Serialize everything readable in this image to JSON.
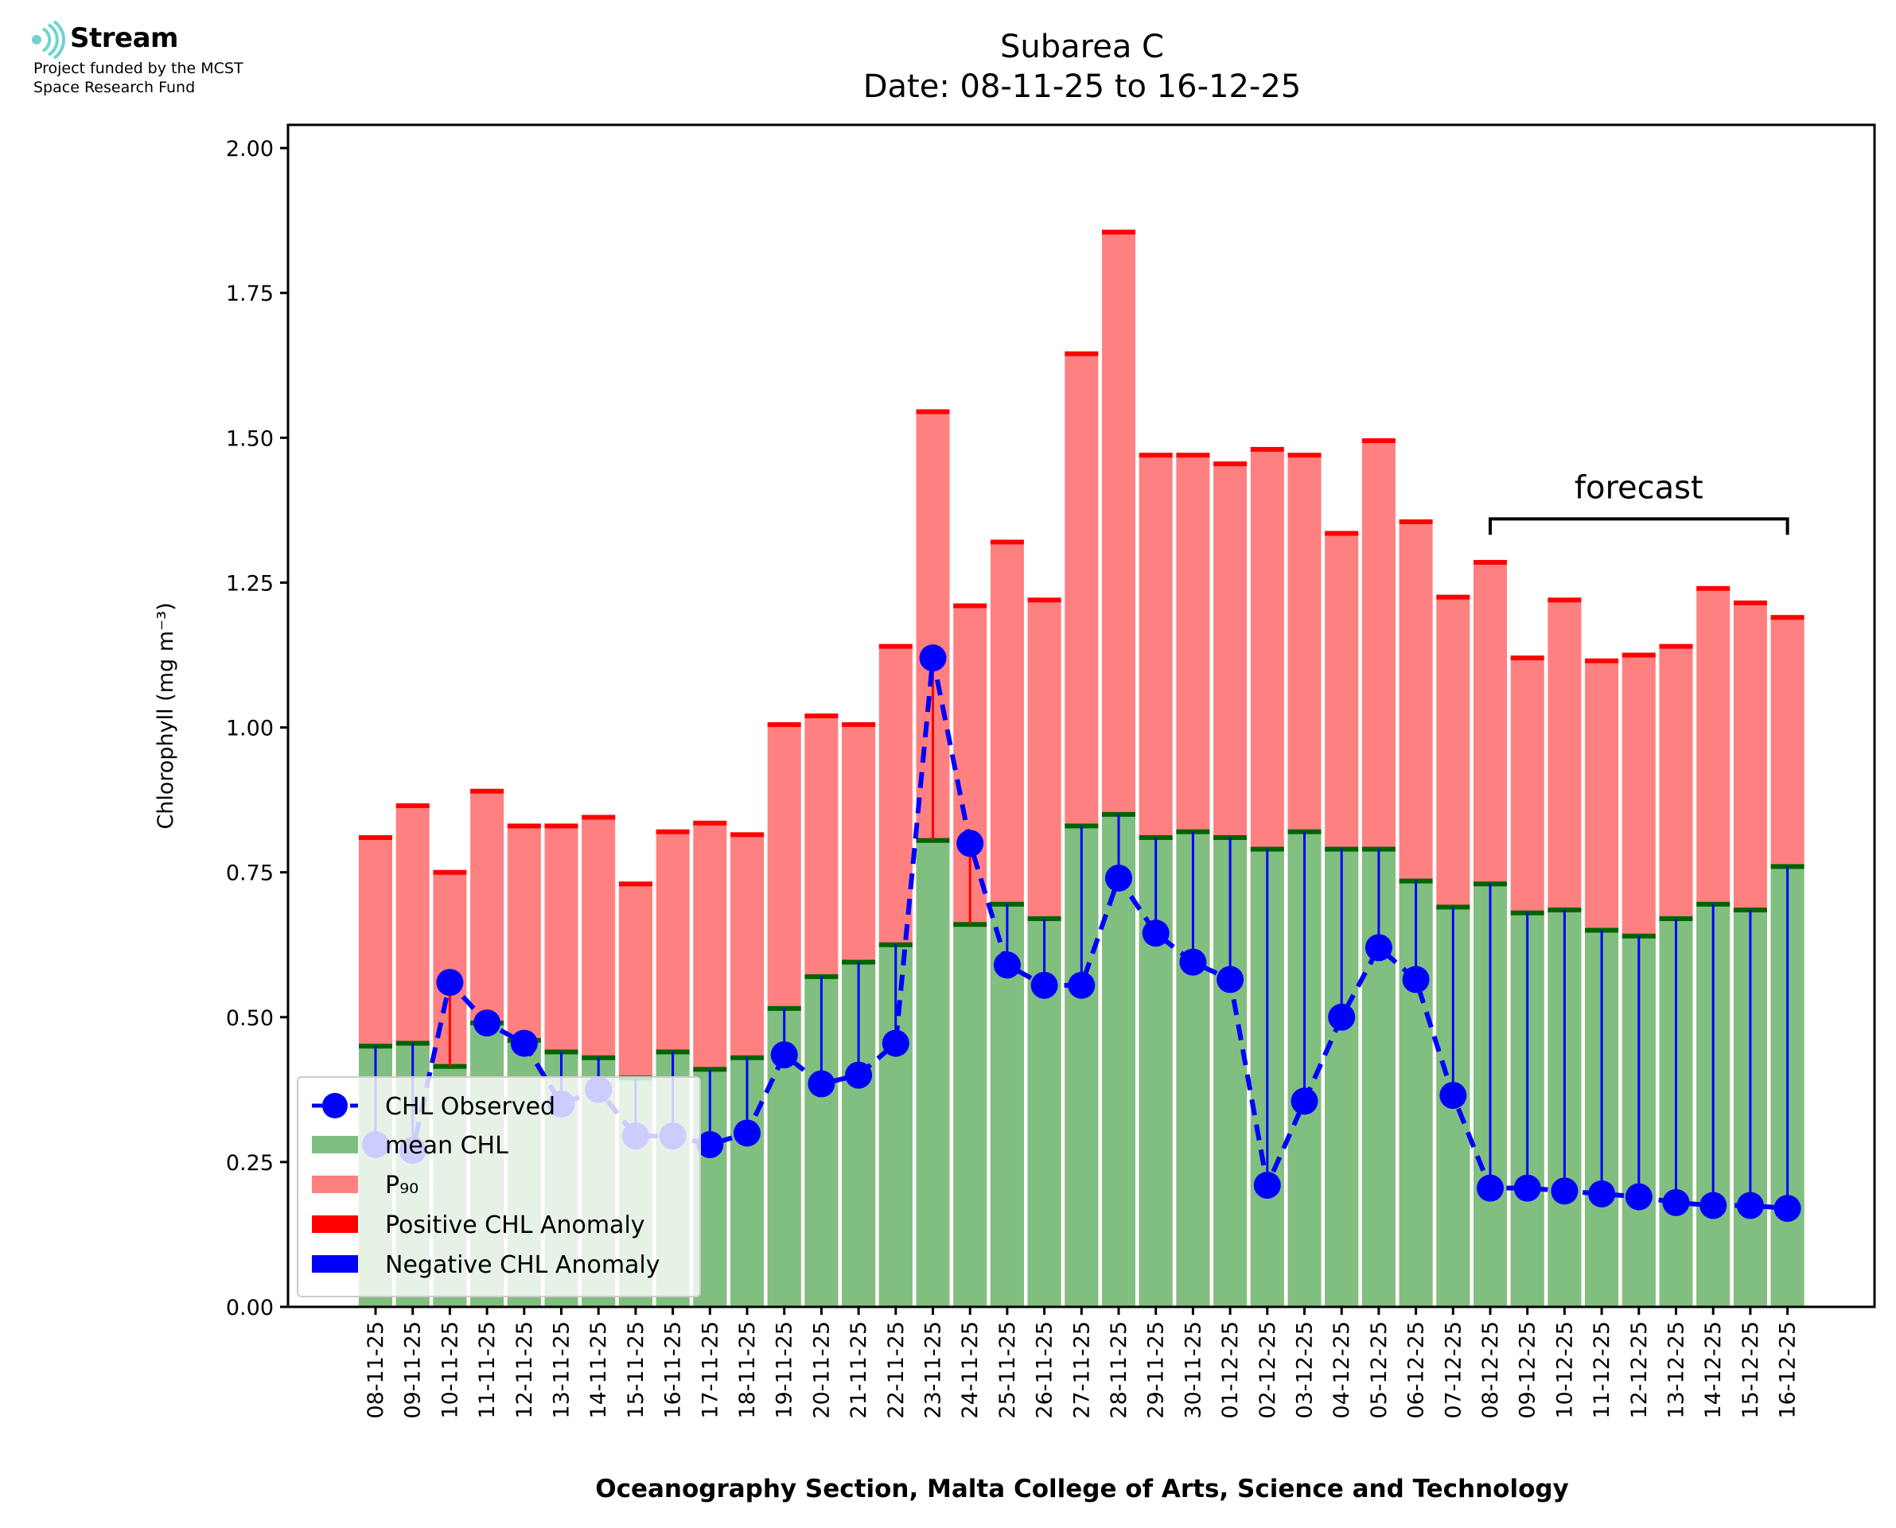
{
  "logo": {
    "name": "Stream",
    "funded_line1": "Project funded by the MCST",
    "funded_line2": "Space Research Fund"
  },
  "chart_data": {
    "type": "bar",
    "title": "Subarea C",
    "subtitle": "Date: 08-11-25 to 16-12-25",
    "xlabel": "Oceanography Section, Malta College of Arts, Science and Technology",
    "ylabel": "Chlorophyll (mg m⁻³)",
    "ylim": [
      0,
      2.04
    ],
    "yticks": [
      "0.00",
      "0.25",
      "0.50",
      "0.75",
      "1.00",
      "1.25",
      "1.50",
      "1.75",
      "2.00"
    ],
    "categories": [
      "08-11-25",
      "09-11-25",
      "10-11-25",
      "11-11-25",
      "12-11-25",
      "13-11-25",
      "14-11-25",
      "15-11-25",
      "16-11-25",
      "17-11-25",
      "18-11-25",
      "19-11-25",
      "20-11-25",
      "21-11-25",
      "22-11-25",
      "23-11-25",
      "24-11-25",
      "25-11-25",
      "26-11-25",
      "27-11-25",
      "28-11-25",
      "29-11-25",
      "30-11-25",
      "01-12-25",
      "02-12-25",
      "03-12-25",
      "04-12-25",
      "05-12-25",
      "06-12-25",
      "07-12-25",
      "08-12-25",
      "09-12-25",
      "10-12-25",
      "11-12-25",
      "12-12-25",
      "13-12-25",
      "14-12-25",
      "15-12-25",
      "16-12-25"
    ],
    "series": [
      {
        "name": "mean CHL",
        "color": "#80bf80",
        "values": [
          0.45,
          0.455,
          0.415,
          0.49,
          0.46,
          0.44,
          0.43,
          0.395,
          0.44,
          0.41,
          0.43,
          0.515,
          0.57,
          0.595,
          0.625,
          0.805,
          0.66,
          0.695,
          0.67,
          0.83,
          0.85,
          0.81,
          0.82,
          0.81,
          0.79,
          0.82,
          0.79,
          0.79,
          0.735,
          0.69,
          0.73,
          0.68,
          0.685,
          0.65,
          0.64,
          0.67,
          0.695,
          0.685,
          0.76
        ]
      },
      {
        "name": "P₉₀",
        "color": "#ff8080",
        "values": [
          0.81,
          0.865,
          0.75,
          0.89,
          0.83,
          0.83,
          0.845,
          0.73,
          0.82,
          0.835,
          0.815,
          1.005,
          1.02,
          1.005,
          1.14,
          1.545,
          1.21,
          1.32,
          1.22,
          1.645,
          1.855,
          1.47,
          1.47,
          1.455,
          1.48,
          1.47,
          1.335,
          1.495,
          1.355,
          1.225,
          1.285,
          1.12,
          1.22,
          1.115,
          1.125,
          1.14,
          1.24,
          1.215,
          1.19
        ]
      },
      {
        "name": "CHL Observed",
        "color": "#0000ff",
        "values": [
          0.28,
          0.27,
          0.56,
          0.49,
          0.455,
          0.35,
          0.375,
          0.295,
          0.295,
          0.28,
          0.3,
          0.435,
          0.385,
          0.4,
          0.455,
          1.12,
          0.8,
          0.59,
          0.555,
          0.555,
          0.74,
          0.645,
          0.595,
          0.565,
          0.21,
          0.355,
          0.5,
          0.62,
          0.565,
          0.365,
          0.205,
          0.205,
          0.2,
          0.195,
          0.19,
          0.18,
          0.175,
          0.175,
          0.17
        ]
      }
    ],
    "legend": {
      "position": "lower-left",
      "entries": [
        "CHL Observed",
        "mean CHL",
        "P₉₀",
        "Positive CHL Anomaly",
        "Negative CHL Anomaly"
      ],
      "colors": [
        "#0000ff",
        "#80bf80",
        "#ff8080",
        "#ff0000",
        "#0000ff"
      ]
    },
    "annotation": {
      "text": "forecast",
      "from": "08-12-25",
      "to": "16-12-25",
      "level": 1.36
    },
    "colors": {
      "mean_edge": "#006400",
      "p90_edge": "#ff0000",
      "positive_anomaly": "#ff0000",
      "negative_anomaly": "#0000ff",
      "observed": "#0000ff"
    }
  }
}
